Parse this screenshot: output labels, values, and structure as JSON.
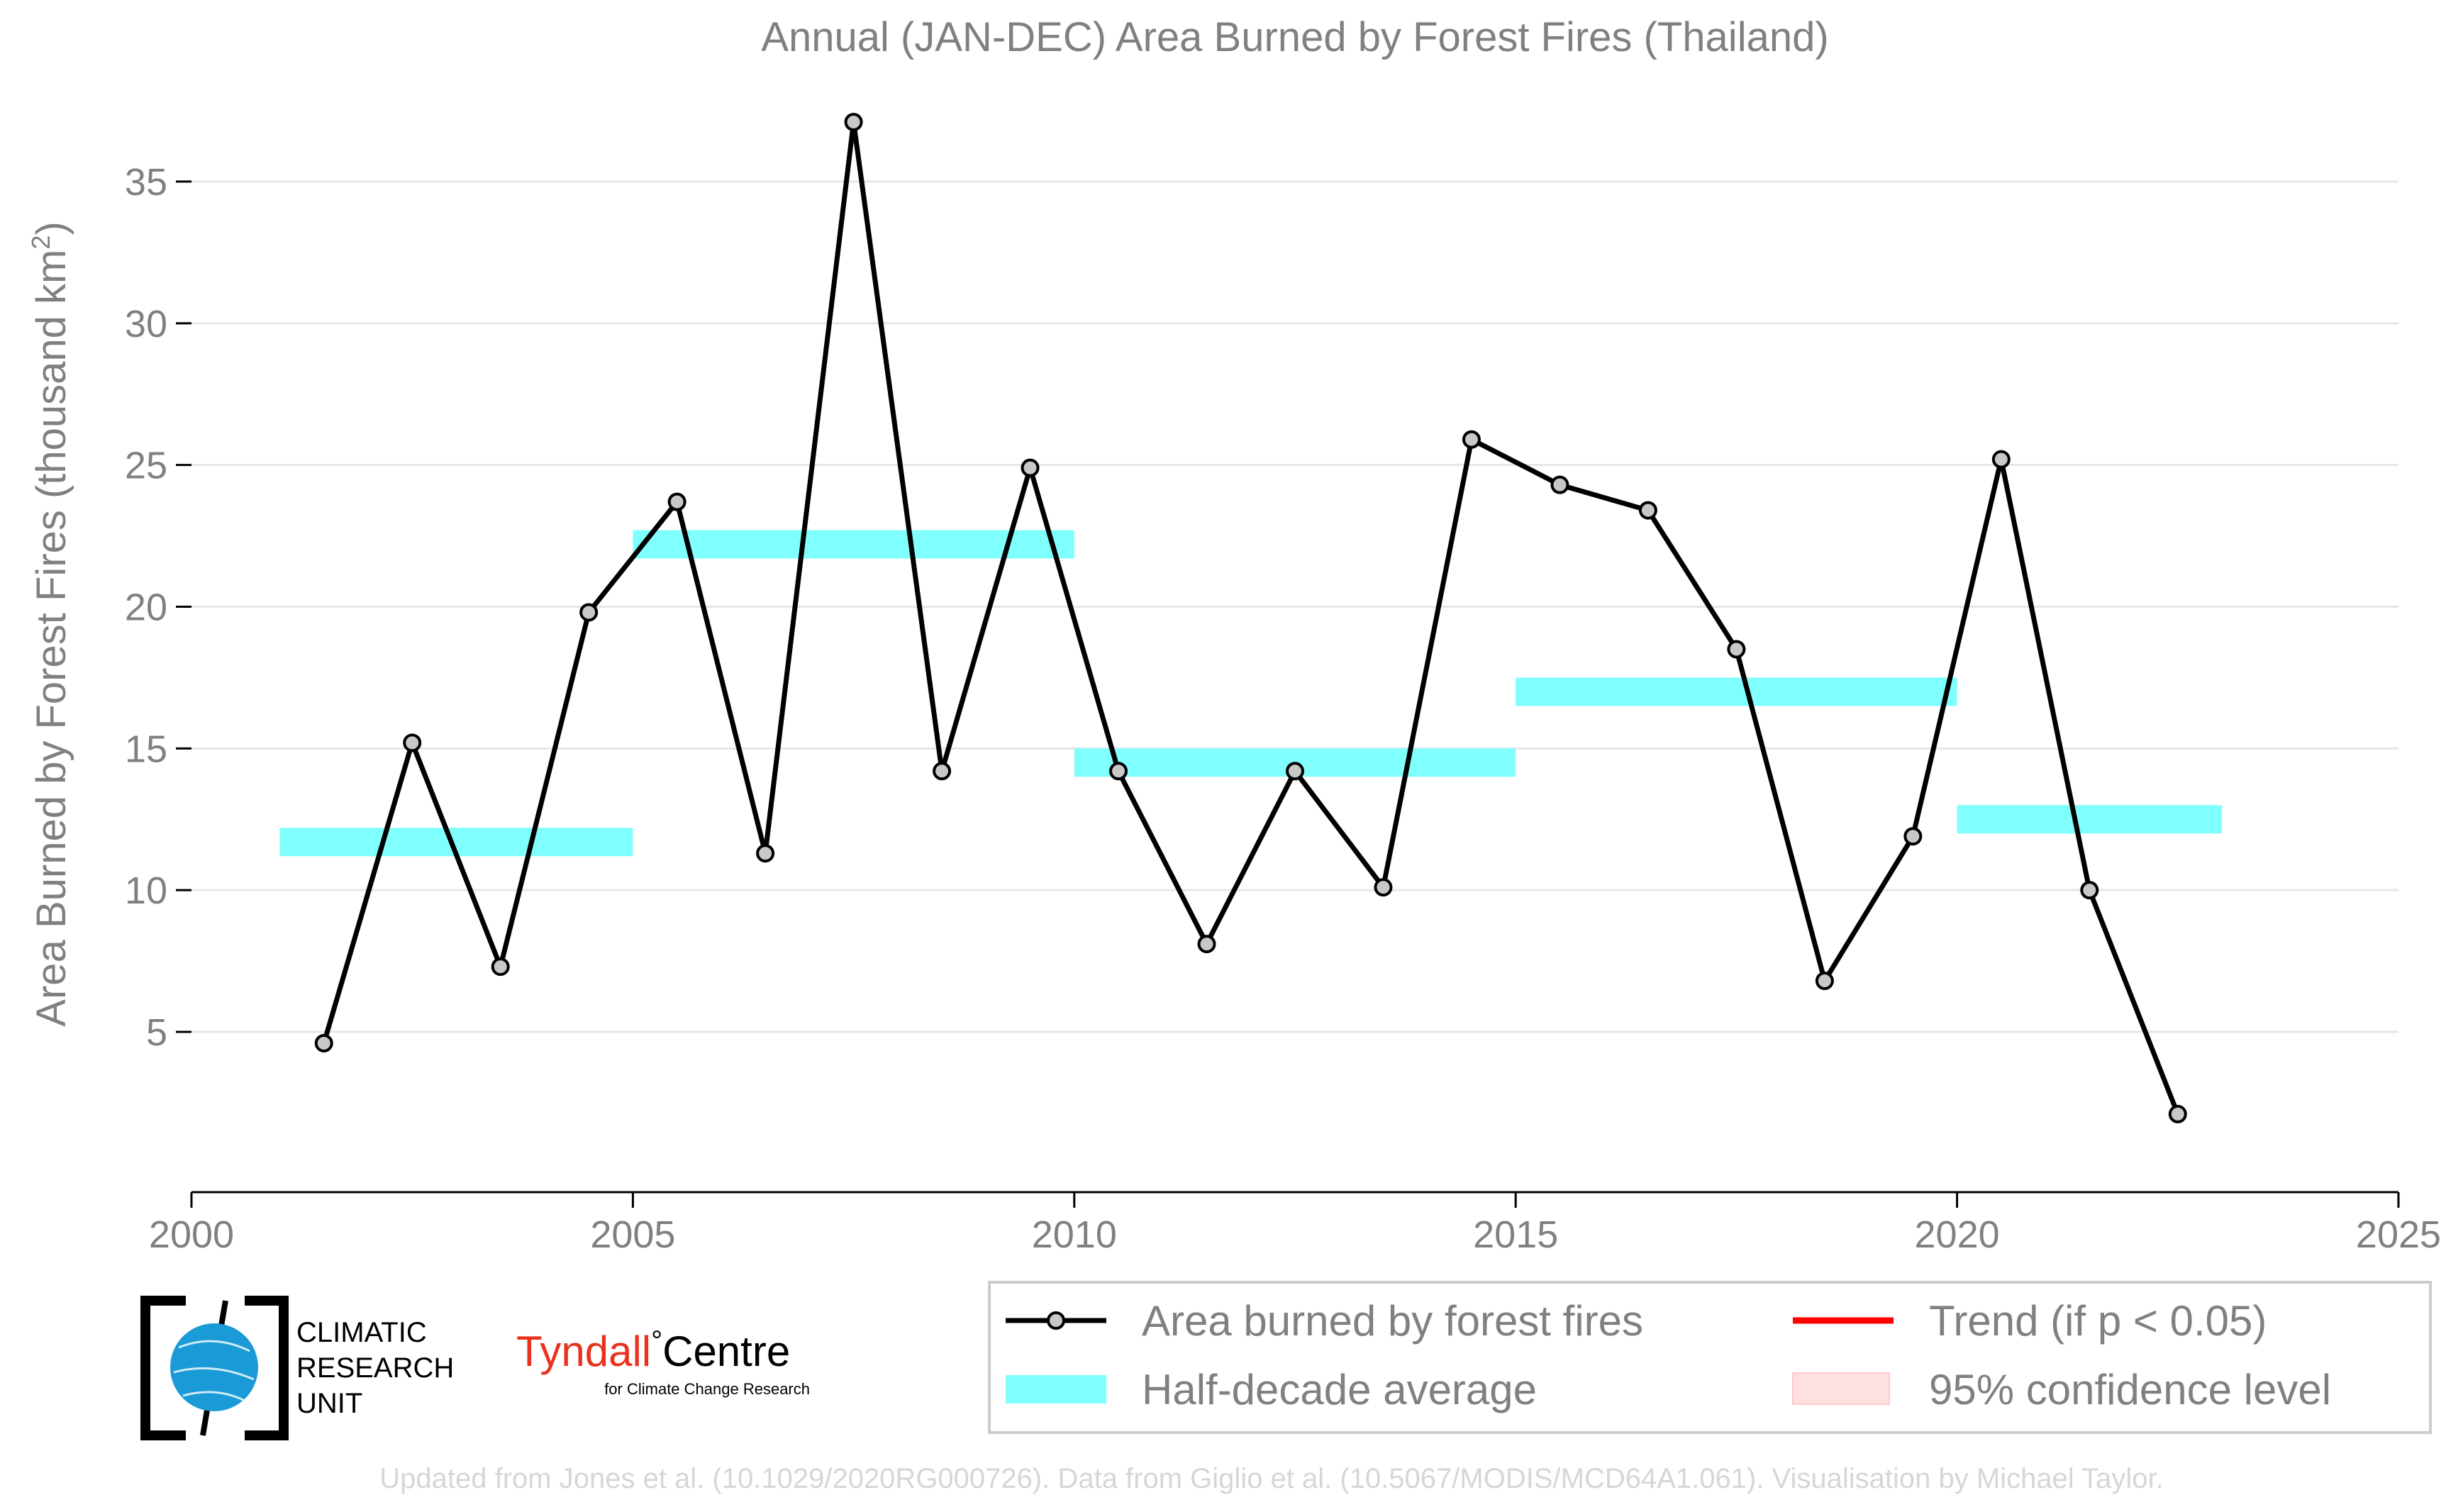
{
  "chart_data": {
    "type": "line",
    "title": "Annual (JAN-DEC) Area Burned by Forest Fires (Thailand)",
    "ylabel_main": "Area Burned by Forest Fires (thousand km",
    "ylabel_sup": "2",
    "ylabel_close": ")",
    "xlim": [
      2000,
      2025
    ],
    "ylim": [
      0,
      38
    ],
    "x_ticks": [
      2000,
      2005,
      2010,
      2015,
      2020,
      2025
    ],
    "y_ticks": [
      5,
      10,
      15,
      20,
      25,
      30,
      35
    ],
    "grid": "horizontal",
    "series": [
      {
        "name": "Area burned by forest fires",
        "color": "#000000",
        "marker_fill": "#c8c8c8",
        "x": [
          2001.5,
          2002.5,
          2003.5,
          2004.5,
          2005.5,
          2006.5,
          2007.5,
          2008.5,
          2009.5,
          2010.5,
          2011.5,
          2012.5,
          2013.5,
          2014.5,
          2015.5,
          2016.5,
          2017.5,
          2018.5,
          2019.5,
          2020.5,
          2021.5,
          2022.5
        ],
        "y": [
          4.6,
          15.2,
          7.3,
          19.8,
          23.7,
          11.3,
          37.1,
          14.2,
          24.9,
          14.2,
          8.1,
          14.2,
          10.1,
          25.9,
          24.3,
          23.4,
          18.5,
          6.8,
          11.9,
          25.2,
          10.0,
          2.1
        ]
      }
    ],
    "half_decade_average": {
      "name": "Half-decade average",
      "color": "#80ffff",
      "segments": [
        {
          "x_start": 2001,
          "x_end": 2005,
          "value": 11.7
        },
        {
          "x_start": 2005,
          "x_end": 2010,
          "value": 22.2
        },
        {
          "x_start": 2010,
          "x_end": 2015,
          "value": 14.5
        },
        {
          "x_start": 2015,
          "x_end": 2020,
          "value": 17.0
        },
        {
          "x_start": 2020,
          "x_end": 2023,
          "value": 12.5
        }
      ]
    },
    "legend": {
      "placement": "bottom-right",
      "entries": [
        {
          "label": "Area burned by forest fires",
          "kind": "line-marker",
          "color": "#000000"
        },
        {
          "label": "Half-decade average",
          "kind": "band",
          "color": "#80ffff"
        },
        {
          "label": "Trend (if p < 0.05)",
          "kind": "line",
          "color": "#ff0000"
        },
        {
          "label": "95% confidence level",
          "kind": "patch",
          "color": "#ffe0e0"
        }
      ]
    },
    "credit": "Updated from Jones et al. (10.1029/2020RG000726). Data from Giglio et al. (10.5067/MODIS/MCD64A1.061). Visualisation by Michael Taylor."
  },
  "logos": {
    "cru_lines": [
      "CLIMATIC",
      "RESEARCH",
      "UNIT"
    ],
    "tyndall_name": "Tyndall",
    "tyndall_degree": "°",
    "tyndall_centre": "Centre",
    "tyndall_sub": "for Climate Change Research",
    "tyndall_color": "#e8321e",
    "cru_globe_color": "#1a9ad6"
  }
}
